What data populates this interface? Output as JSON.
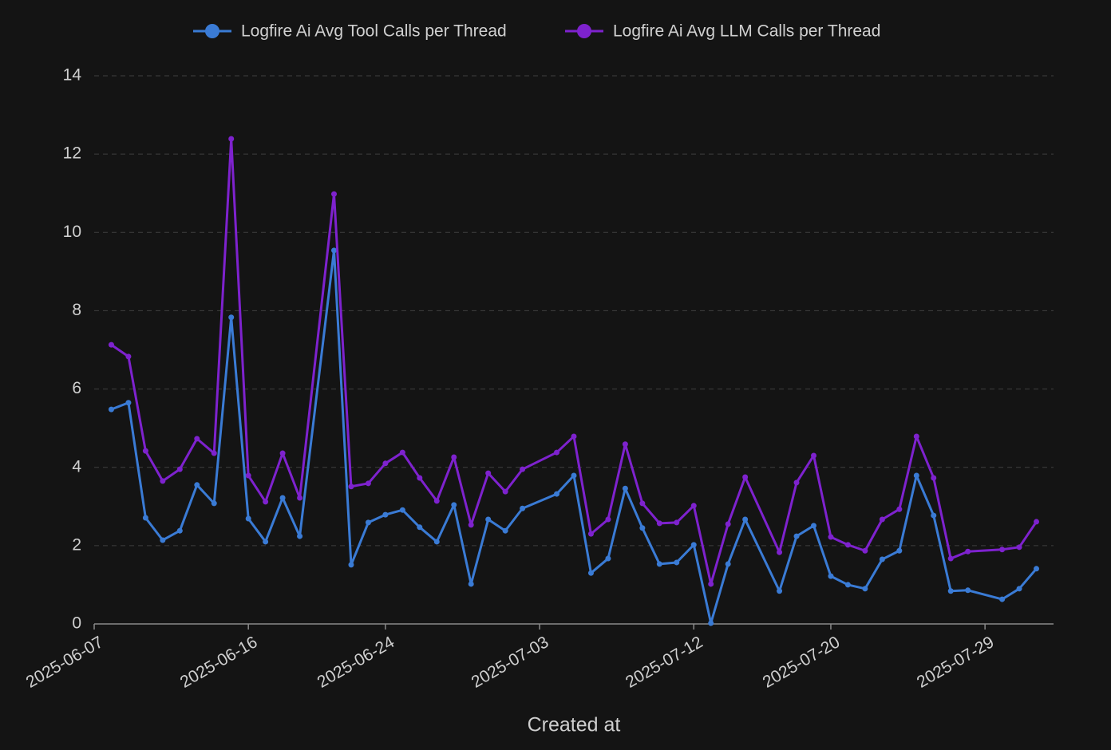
{
  "chart_data": {
    "type": "line",
    "x_label": "Created at",
    "x": [
      "2025-06-08",
      "2025-06-09",
      "2025-06-10",
      "2025-06-11",
      "2025-06-12",
      "2025-06-13",
      "2025-06-14",
      "2025-06-15",
      "2025-06-16",
      "2025-06-17",
      "2025-06-18",
      "2025-06-19",
      "2025-06-21",
      "2025-06-22",
      "2025-06-23",
      "2025-06-24",
      "2025-06-25",
      "2025-06-26",
      "2025-06-27",
      "2025-06-28",
      "2025-06-29",
      "2025-06-30",
      "2025-07-01",
      "2025-07-02",
      "2025-07-04",
      "2025-07-05",
      "2025-07-06",
      "2025-07-07",
      "2025-07-08",
      "2025-07-09",
      "2025-07-10",
      "2025-07-11",
      "2025-07-12",
      "2025-07-13",
      "2025-07-14",
      "2025-07-15",
      "2025-07-17",
      "2025-07-18",
      "2025-07-19",
      "2025-07-20",
      "2025-07-21",
      "2025-07-22",
      "2025-07-23",
      "2025-07-24",
      "2025-07-25",
      "2025-07-26",
      "2025-07-27",
      "2025-07-28",
      "2025-07-30",
      "2025-07-31",
      "2025-08-01"
    ],
    "series": [
      {
        "name": "Logfire Ai Avg Tool Calls per Thread",
        "color": "#3a7bd5",
        "values": [
          5.48,
          5.65,
          2.71,
          2.14,
          2.38,
          3.55,
          3.08,
          7.83,
          2.69,
          2.1,
          3.22,
          2.24,
          9.54,
          1.51,
          2.59,
          2.79,
          2.91,
          2.47,
          2.1,
          3.04,
          1.02,
          2.67,
          2.38,
          2.95,
          3.32,
          3.79,
          1.3,
          1.67,
          3.46,
          2.45,
          1.53,
          1.57,
          2.02,
          0.02,
          1.53,
          2.67,
          0.84,
          2.24,
          2.51,
          1.22,
          1.0,
          0.9,
          1.65,
          1.87,
          3.79,
          2.77,
          0.84,
          0.86,
          0.63,
          0.9,
          1.41
        ]
      },
      {
        "name": "Logfire Ai Avg LLM Calls per Thread",
        "color": "#7e22ce",
        "values": [
          7.13,
          6.83,
          4.42,
          3.65,
          3.95,
          4.73,
          4.36,
          12.39,
          3.79,
          3.12,
          4.36,
          3.22,
          10.98,
          3.51,
          3.59,
          4.1,
          4.38,
          3.73,
          3.14,
          4.26,
          2.53,
          3.85,
          3.38,
          3.95,
          4.38,
          4.79,
          2.3,
          2.67,
          4.59,
          3.08,
          2.57,
          2.59,
          3.02,
          1.02,
          2.55,
          3.75,
          1.83,
          3.61,
          4.3,
          2.22,
          2.02,
          1.87,
          2.67,
          2.93,
          4.79,
          3.73,
          1.67,
          1.85,
          1.9,
          1.96,
          2.61
        ]
      }
    ],
    "xlim": [
      "2025-06-07",
      "2025-08-02"
    ],
    "xticks": [
      "2025-06-07",
      "2025-06-16",
      "2025-06-24",
      "2025-07-03",
      "2025-07-12",
      "2025-07-20",
      "2025-07-29"
    ],
    "ylim": [
      0,
      14
    ],
    "yticks": [
      0,
      2,
      4,
      6,
      8,
      10,
      12,
      14
    ],
    "grid": true,
    "legend": "top"
  }
}
